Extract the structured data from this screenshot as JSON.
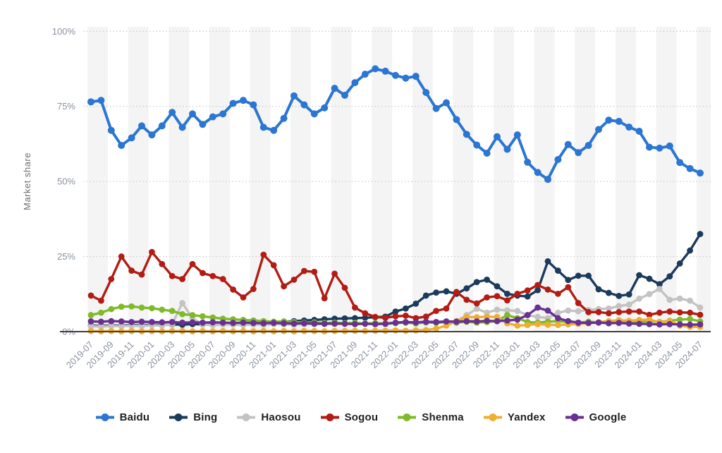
{
  "chart_data": {
    "type": "line",
    "title": "",
    "xlabel": "",
    "ylabel": "Market share",
    "ylim": [
      0,
      100
    ],
    "grid": "horizontal-dotted",
    "legend_position": "bottom",
    "ytick_labels": [
      "100%",
      "75%",
      "50%",
      "25%",
      "0%"
    ],
    "ytick_values": [
      100,
      75,
      50,
      25,
      0
    ],
    "xtick_every": 2,
    "categories": [
      "2019-07",
      "2019-08",
      "2019-09",
      "2019-10",
      "2019-11",
      "2019-12",
      "2020-01",
      "2020-02",
      "2020-03",
      "2020-04",
      "2020-05",
      "2020-06",
      "2020-07",
      "2020-08",
      "2020-09",
      "2020-10",
      "2020-11",
      "2020-12",
      "2021-01",
      "2021-02",
      "2021-03",
      "2021-04",
      "2021-05",
      "2021-06",
      "2021-07",
      "2021-08",
      "2021-09",
      "2021-10",
      "2021-11",
      "2021-12",
      "2022-01",
      "2022-02",
      "2022-03",
      "2022-04",
      "2022-05",
      "2022-06",
      "2022-07",
      "2022-08",
      "2022-09",
      "2022-10",
      "2022-11",
      "2022-12",
      "2023-01",
      "2023-02",
      "2023-03",
      "2023-04",
      "2023-05",
      "2023-06",
      "2023-07",
      "2023-08",
      "2023-09",
      "2023-10",
      "2023-11",
      "2023-12",
      "2024-01",
      "2024-02",
      "2024-03",
      "2024-04",
      "2024-05",
      "2024-06",
      "2024-07"
    ],
    "series": [
      {
        "name": "Baidu",
        "color": "#2b76d2",
        "values": [
          76.5,
          77,
          67,
          62,
          64.5,
          68.5,
          65.5,
          68.5,
          73,
          68,
          72.5,
          69,
          71.5,
          72.5,
          76,
          77,
          75.5,
          68,
          67,
          71,
          78.5,
          75.5,
          72.5,
          74.5,
          81,
          78.7,
          82.9,
          85.7,
          87.5,
          86.7,
          85.3,
          84.4,
          85,
          79.6,
          74.3,
          76.2,
          70.6,
          65.7,
          62.1,
          59.4,
          64.9,
          60.7,
          65.5,
          56.4,
          53,
          50.7,
          57.3,
          62.3,
          59.6,
          62,
          67.3,
          70.4,
          70,
          68.1,
          66.7,
          61.4,
          61.1,
          61.8,
          56.3,
          54.3,
          52.8
        ]
      },
      {
        "name": "Bing",
        "color": "#1b3a5c",
        "values": [
          2,
          1.9,
          2.1,
          2,
          2.2,
          2.1,
          2.3,
          2.2,
          2.4,
          2.3,
          2.5,
          2.4,
          2.6,
          2.5,
          2.7,
          2.6,
          2.8,
          2.9,
          3.1,
          3.3,
          3.5,
          3.7,
          3.9,
          4.1,
          4.3,
          4.4,
          4.5,
          4.6,
          4.8,
          5,
          6.7,
          7.7,
          9.3,
          12,
          13,
          13.4,
          12.6,
          14.4,
          16.5,
          17.3,
          15.1,
          12.6,
          12,
          11.7,
          13.8,
          23.4,
          20.3,
          17.2,
          18.6,
          18.6,
          14.1,
          12.9,
          11.9,
          12.4,
          18.8,
          17.6,
          15.8,
          18.4,
          22.7,
          27,
          32.5
        ]
      },
      {
        "name": "Haosou",
        "color": "#c3c3c3",
        "values": [
          1.8,
          1.7,
          1.9,
          1.8,
          2,
          1.9,
          2.1,
          2,
          2.5,
          9.5,
          4.5,
          2.3,
          2.2,
          2.4,
          2.3,
          2.2,
          2.4,
          2.3,
          2.5,
          2.4,
          2.3,
          2.5,
          2.4,
          2.6,
          2.5,
          2.7,
          2.6,
          2.8,
          2.7,
          2.9,
          3,
          2.9,
          3.1,
          3,
          3.2,
          3.3,
          3.5,
          5.5,
          7.6,
          6.3,
          7.3,
          7.1,
          6.9,
          5.5,
          4.9,
          4.5,
          6.3,
          7,
          6.8,
          7.2,
          7.5,
          7.7,
          8.5,
          9,
          11,
          12.5,
          14.2,
          10.6,
          11,
          10.3,
          8
        ]
      },
      {
        "name": "Sogou",
        "color": "#b21c14",
        "values": [
          12,
          10.3,
          17.5,
          25,
          20.3,
          19,
          26.5,
          22.5,
          18.5,
          17.5,
          22.5,
          19.5,
          18.5,
          17.5,
          14,
          11.4,
          14.2,
          25.6,
          22.1,
          15.1,
          17.3,
          20.2,
          19.9,
          11.1,
          19.3,
          14.6,
          8,
          6.1,
          4.9,
          4.6,
          5.1,
          5.3,
          4.5,
          5,
          6.9,
          7.7,
          13.2,
          10.6,
          9.4,
          11.4,
          11.8,
          10.4,
          12.6,
          13.7,
          15.5,
          14,
          12.6,
          14.8,
          9.5,
          6.5,
          6.5,
          6.1,
          6.5,
          6.7,
          6.7,
          5.6,
          6.3,
          6.7,
          6.4,
          6.3,
          5.6
        ]
      },
      {
        "name": "Shenma",
        "color": "#7fba28",
        "values": [
          5.5,
          6.3,
          7.5,
          8.3,
          8.4,
          8,
          7.8,
          7.3,
          6.9,
          5.8,
          5.5,
          5.1,
          4.7,
          4.3,
          4.1,
          3.9,
          3.7,
          3.5,
          3.3,
          3.4,
          3.2,
          3,
          3.1,
          2.9,
          3,
          2.8,
          2.9,
          2.7,
          2.8,
          2.6,
          2.8,
          3,
          2.7,
          3.1,
          2.9,
          3.2,
          3,
          3.3,
          3,
          3.2,
          3.5,
          5.5,
          4.5,
          3.2,
          3,
          3.3,
          3.5,
          3.2,
          3,
          3.3,
          3.1,
          3.4,
          3.2,
          3,
          3.3,
          3.5,
          3.2,
          3.6,
          4,
          4.2,
          3.4
        ]
      },
      {
        "name": "Yandex",
        "color": "#eeae33",
        "values": [
          0.2,
          0.1,
          0.2,
          0.1,
          0.2,
          0.1,
          0.2,
          0.1,
          0.2,
          0.2,
          0.1,
          0.2,
          0.1,
          0.2,
          0.1,
          0.2,
          0.1,
          0.2,
          0.1,
          0.2,
          0.1,
          0.2,
          0.2,
          0.1,
          0.2,
          0.2,
          0.3,
          0.2,
          0.3,
          0.3,
          0.4,
          0.3,
          0.4,
          0.5,
          1,
          2,
          3.5,
          4.9,
          4.8,
          5,
          4.9,
          2.8,
          2,
          2.2,
          2.5,
          2.3,
          2.2,
          2.4,
          2.6,
          2.8,
          3.2,
          3.5,
          3.8,
          3.6,
          3.9,
          4,
          3.1,
          3.5,
          2,
          1.6,
          1.6
        ]
      },
      {
        "name": "Google",
        "color": "#683091",
        "values": [
          3.4,
          3.3,
          3.5,
          3.4,
          3.2,
          3.3,
          3.2,
          3.1,
          3.2,
          3,
          3.1,
          3,
          3.1,
          3,
          2.9,
          3,
          2.9,
          2.8,
          2.9,
          2.8,
          2.7,
          2.8,
          2.7,
          2.6,
          2.7,
          2.6,
          2.5,
          2.6,
          2.5,
          2.6,
          3,
          3.2,
          3.1,
          3.3,
          3.2,
          3.4,
          3.3,
          3.5,
          3.4,
          3.6,
          3.5,
          3.7,
          4,
          5.5,
          8,
          7,
          4.5,
          3.5,
          3,
          2.9,
          3,
          2.8,
          2.9,
          2.7,
          2.6,
          2.5,
          2.4,
          2.5,
          2.4,
          2.3,
          2.4
        ]
      }
    ],
    "style": {
      "plot_band_color": "#f4f4f4",
      "gridline_color": "#cccccc",
      "axis_line_color": "#3d3d3d",
      "tick_label_color": "#8b929e",
      "axis_title_color": "#6f6f6f",
      "legend_text_color": "#1f1f1f"
    }
  }
}
